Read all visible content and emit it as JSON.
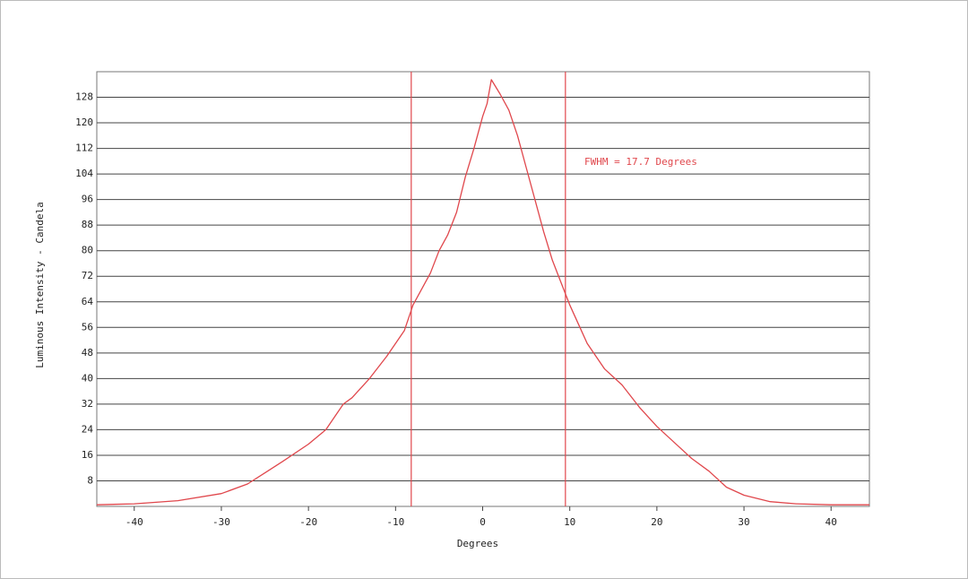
{
  "chart_data": {
    "type": "line",
    "xlabel": "Degrees",
    "ylabel": "Luminous Intensity - Candela",
    "annotation": "FWHM = 17.7 Degrees",
    "color": "#e0474c",
    "x": [
      -44.3,
      -40,
      -35,
      -30,
      -27,
      -25,
      -23,
      -20,
      -18,
      -17,
      -16,
      -15,
      -13,
      -11,
      -9,
      -8,
      -6,
      -5,
      -4,
      -3,
      -2,
      -1,
      0,
      0.5,
      1,
      2,
      3,
      4,
      5,
      6,
      7,
      8,
      9,
      10,
      11,
      12,
      14,
      16,
      18,
      20,
      22,
      24,
      26,
      28,
      30,
      33,
      36,
      40,
      44.4
    ],
    "values": [
      0.5,
      0.8,
      1.8,
      4,
      7,
      10.5,
      14,
      19.5,
      24,
      28,
      32,
      34,
      40,
      47,
      55,
      63,
      73,
      80,
      85,
      92,
      103,
      112,
      122,
      126,
      133.5,
      129,
      124,
      116,
      106,
      96,
      86,
      77,
      70,
      63,
      57,
      51,
      43,
      38,
      31,
      25,
      20,
      15,
      11,
      6,
      3.5,
      1.5,
      0.8,
      0.5,
      0.5
    ],
    "reference_lines": [
      -8.2,
      9.5
    ],
    "xlim": [
      -44.3,
      44.4
    ],
    "ylim": [
      0,
      136
    ],
    "xticks": [
      -40,
      -30,
      -20,
      -10,
      0,
      10,
      20,
      30,
      40
    ],
    "yticks": [
      8,
      16,
      24,
      32,
      40,
      48,
      56,
      64,
      72,
      80,
      88,
      96,
      104,
      112,
      120,
      128
    ],
    "grid": true
  }
}
